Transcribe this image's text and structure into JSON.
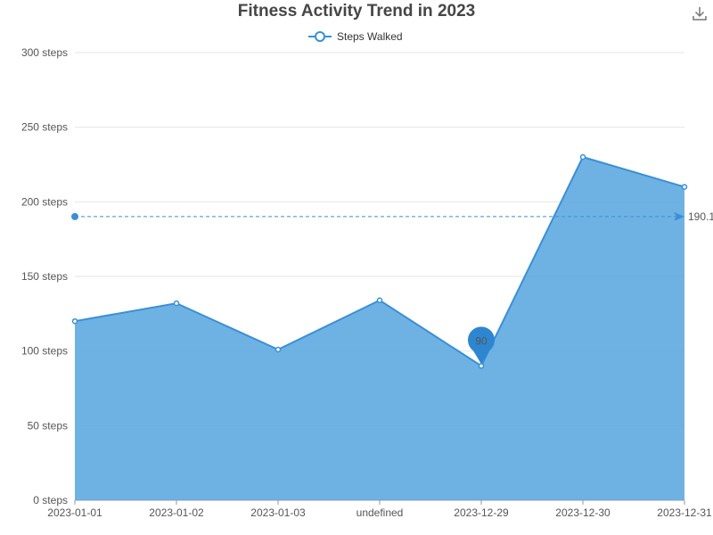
{
  "chart_data": {
    "type": "area",
    "title": "Fitness Activity Trend in 2023",
    "categories": [
      "2023-01-01",
      "2023-01-02",
      "2023-01-03",
      "undefined",
      "2023-12-29",
      "2023-12-30",
      "2023-12-31"
    ],
    "series": [
      {
        "name": "Steps Walked",
        "values": [
          120,
          132,
          101,
          134,
          90,
          230,
          210
        ]
      }
    ],
    "ylim": [
      0,
      300
    ],
    "yticks": [
      0,
      50,
      100,
      150,
      200,
      250,
      300
    ],
    "y_unit_suffix": " steps",
    "grid": true,
    "legend_position": "top-center",
    "colors": {
      "line": "#3a8fd6",
      "area": "#5aa7e0",
      "grid": "#e6e6e6"
    },
    "markline": {
      "value": 190.1,
      "label": "190.1",
      "type": "average"
    },
    "markpoint": {
      "category": "2023-12-29",
      "value": 90,
      "label": "90",
      "type": "min"
    }
  },
  "toolbox": {
    "icon": "download-icon"
  }
}
